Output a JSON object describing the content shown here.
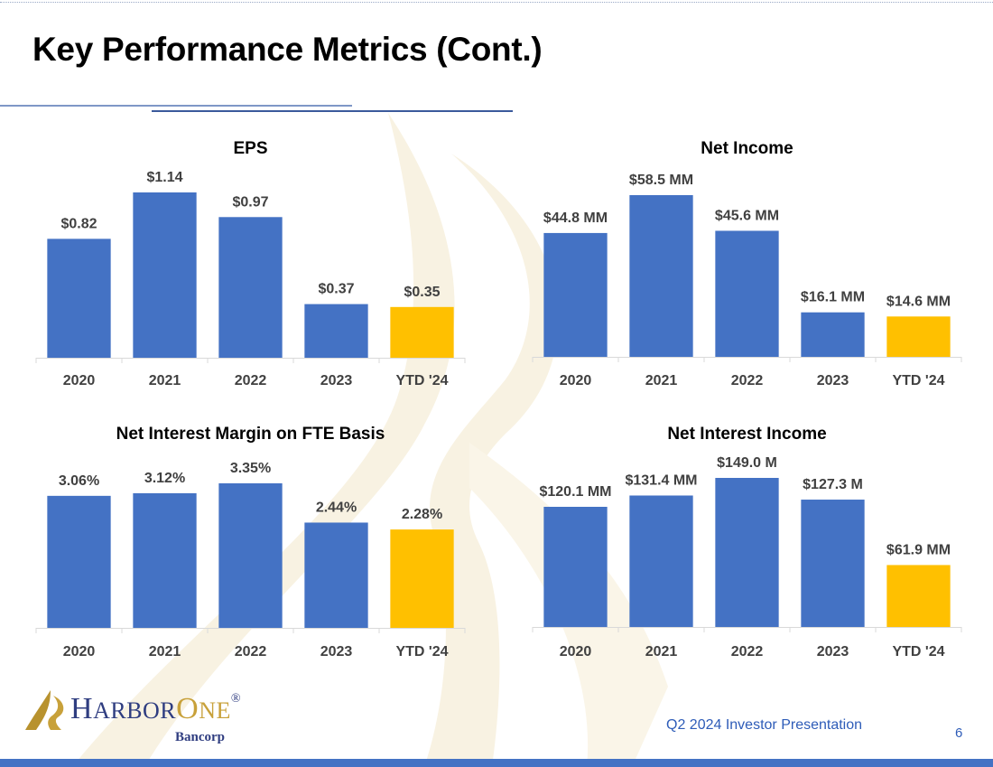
{
  "page": {
    "title": "Key Performance Metrics (Cont.)",
    "footer": "Q2 2024 Investor Presentation",
    "page_number": "6"
  },
  "logo": {
    "brand_part1": "H",
    "brand_part2": "ARBOR",
    "brand_part3": "O",
    "brand_part4": "NE",
    "registered": "®",
    "sub": "Bancorp"
  },
  "colors": {
    "bar": "#4472c4",
    "highlight": "#ffc000",
    "accent": "#2e5cb8",
    "watermark": "#f7f1df"
  },
  "chart_data": [
    {
      "type": "bar",
      "title": "EPS",
      "categories": [
        "2020",
        "2021",
        "2022",
        "2023",
        "YTD '24"
      ],
      "values": [
        0.82,
        1.14,
        0.97,
        0.37,
        0.35
      ],
      "labels": [
        "$0.82",
        "$1.14",
        "$0.97",
        "$0.37",
        "$0.35"
      ],
      "highlight_index": 4,
      "ylim": [
        0,
        1.14
      ]
    },
    {
      "type": "bar",
      "title": "Net Income",
      "categories": [
        "2020",
        "2021",
        "2022",
        "2023",
        "YTD '24"
      ],
      "values": [
        44.8,
        58.5,
        45.6,
        16.1,
        14.6
      ],
      "labels": [
        "$44.8 MM",
        "$58.5 MM",
        "$45.6 MM",
        "$16.1 MM",
        "$14.6 MM"
      ],
      "highlight_index": 4,
      "ylim": [
        0,
        58.5
      ]
    },
    {
      "type": "bar",
      "title": "Net Interest Margin on FTE Basis",
      "categories": [
        "2020",
        "2021",
        "2022",
        "2023",
        "YTD '24"
      ],
      "values": [
        3.06,
        3.12,
        3.35,
        2.44,
        2.28
      ],
      "labels": [
        "3.06%",
        "3.12%",
        "3.35%",
        "2.44%",
        "2.28%"
      ],
      "highlight_index": 4,
      "ylim": [
        0,
        3.35
      ]
    },
    {
      "type": "bar",
      "title": "Net Interest Income",
      "categories": [
        "2020",
        "2021",
        "2022",
        "2023",
        "YTD '24"
      ],
      "values": [
        120.1,
        131.4,
        149.0,
        127.3,
        61.9
      ],
      "labels": [
        "$120.1 MM",
        "$131.4 MM",
        "$149.0 M",
        "$127.3 M",
        "$61.9 MM"
      ],
      "highlight_index": 4,
      "ylim": [
        0,
        149.0
      ]
    }
  ]
}
